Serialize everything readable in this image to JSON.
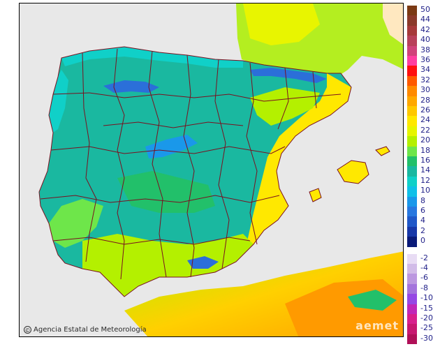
{
  "map": {
    "credit": "Agencia Estatal de Meteorología",
    "copyright_symbol": "©",
    "watermark": "aemet",
    "colors": {
      "sea": "#e8e8e8",
      "border": "#7a1020",
      "mountain": "#2b6fd9"
    }
  },
  "legend": {
    "positive": [
      {
        "label": "50",
        "color": "#7b3a14"
      },
      {
        "label": "44",
        "color": "#8b3a2a"
      },
      {
        "label": "42",
        "color": "#a63a3a"
      },
      {
        "label": "40",
        "color": "#b8415a"
      },
      {
        "label": "38",
        "color": "#d0437a"
      },
      {
        "label": "36",
        "color": "#ff3fa0"
      },
      {
        "label": "34",
        "color": "#ff1010"
      },
      {
        "label": "32",
        "color": "#ff5a00"
      },
      {
        "label": "30",
        "color": "#ff8a00"
      },
      {
        "label": "28",
        "color": "#ffa800"
      },
      {
        "label": "26",
        "color": "#ffc800"
      },
      {
        "label": "24",
        "color": "#ffe800"
      },
      {
        "label": "22",
        "color": "#e6f500"
      },
      {
        "label": "20",
        "color": "#b4f000"
      },
      {
        "label": "18",
        "color": "#6ee64a"
      },
      {
        "label": "16",
        "color": "#22c06a"
      },
      {
        "label": "14",
        "color": "#1ab8a0"
      },
      {
        "label": "12",
        "color": "#10d0c8"
      },
      {
        "label": "10",
        "color": "#10c0e8"
      },
      {
        "label": "8",
        "color": "#1a98ea"
      },
      {
        "label": "6",
        "color": "#2878e0"
      },
      {
        "label": "4",
        "color": "#2058c8"
      },
      {
        "label": "2",
        "color": "#1838a8"
      },
      {
        "label": "0",
        "color": "#0a1a78"
      }
    ],
    "negative": [
      {
        "label": "-2",
        "color": "#e8dcf4"
      },
      {
        "label": "-4",
        "color": "#d2bce8"
      },
      {
        "label": "-6",
        "color": "#bc98e0"
      },
      {
        "label": "-8",
        "color": "#a474dc"
      },
      {
        "label": "-10",
        "color": "#9648e4"
      },
      {
        "label": "-15",
        "color": "#c028b8"
      },
      {
        "label": "-20",
        "color": "#d8208c"
      },
      {
        "label": "-25",
        "color": "#c81870"
      },
      {
        "label": "-30",
        "color": "#b01058"
      }
    ]
  }
}
